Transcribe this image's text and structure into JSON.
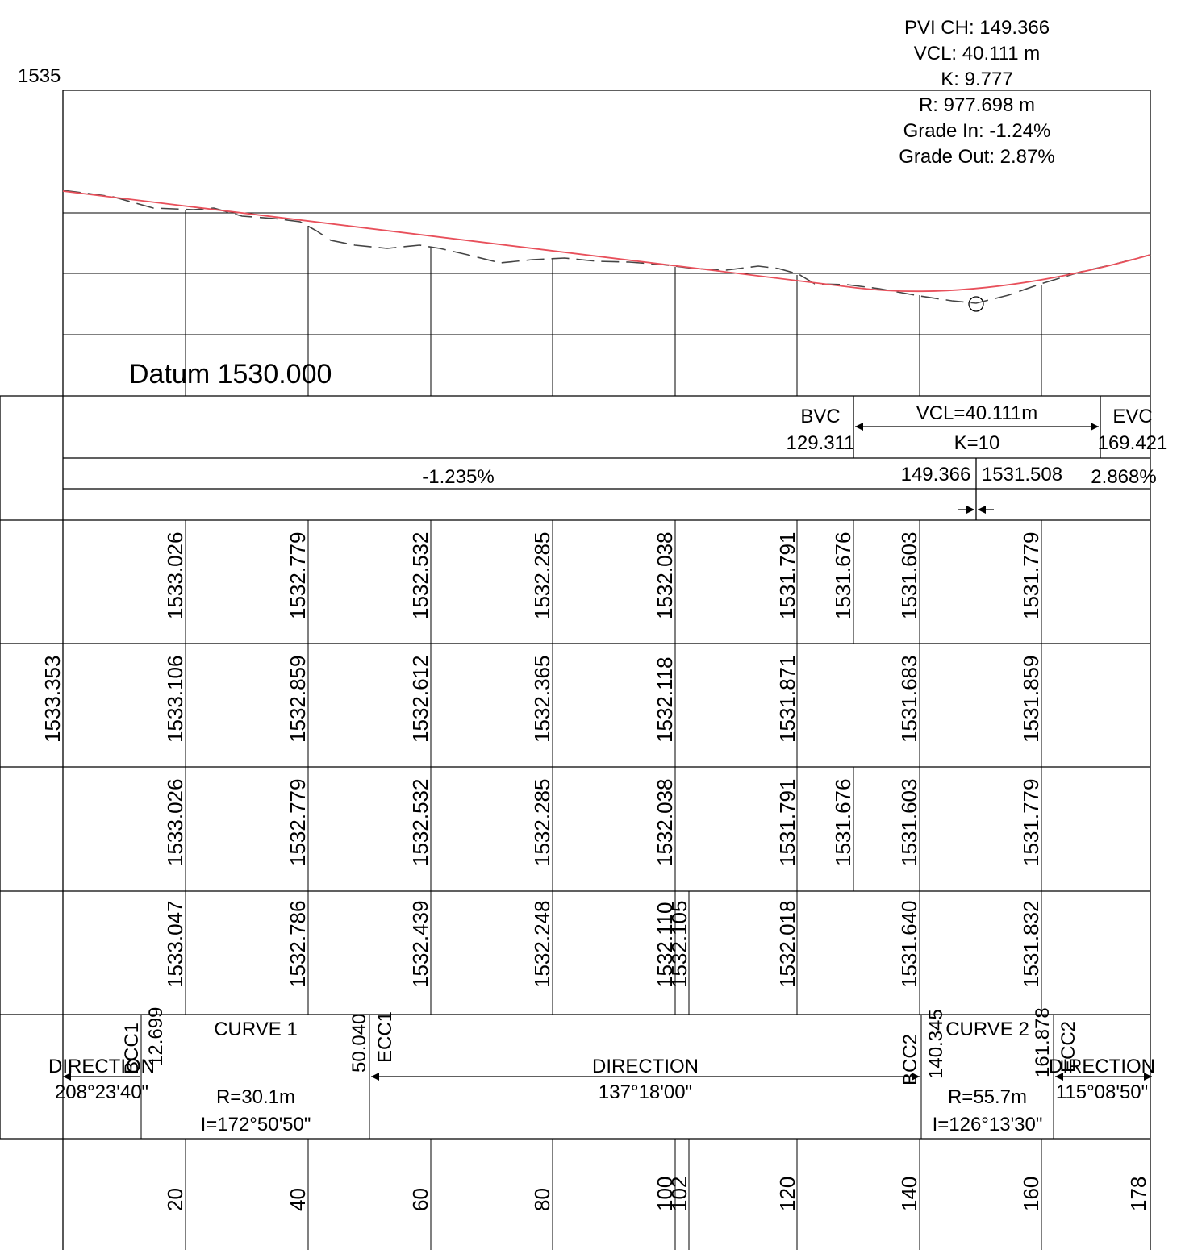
{
  "pvi_info": {
    "lines": [
      "PVI CH: 149.366",
      "VCL: 40.111 m",
      "K: 9.777",
      "R: 977.698 m",
      "Grade In: -1.24%",
      "Grade Out: 2.87%"
    ]
  },
  "profile": {
    "top_level_label": "1535",
    "datum_label": "Datum 1530.000",
    "design_line_color": "#e8505b",
    "ground_line_color": "#444444"
  },
  "vertical_curve": {
    "bvc_label": "BVC",
    "bvc_chainage": "129.311",
    "vcl_label": "VCL=40.111m",
    "k_label": "K=10",
    "evc_label": "EVC",
    "evc_chainage": "169.421"
  },
  "grades": {
    "grade_in": "-1.235%",
    "pvi_chainage": "149.366",
    "pvi_level": "1531.508",
    "grade_out": "2.868%"
  },
  "rows": {
    "design_levels": [
      "1533.026",
      "1532.779",
      "1532.532",
      "1532.285",
      "1532.038",
      "1531.791",
      "1531.676",
      "1531.603",
      "1531.779"
    ],
    "row2_start": "1533.353",
    "row2_values": [
      "1533.106",
      "1532.859",
      "1532.612",
      "1532.365",
      "1532.118",
      "1531.871",
      "1531.683",
      "1531.859"
    ],
    "row3_values": [
      "1533.026",
      "1532.779",
      "1532.532",
      "1532.285",
      "1532.038",
      "1531.791",
      "1531.676",
      "1531.603",
      "1531.779"
    ],
    "ground_levels": [
      "1533.047",
      "1532.786",
      "1532.439",
      "1532.248",
      "1532.110",
      "1532.105",
      "1532.018",
      "1531.640",
      "1531.832"
    ]
  },
  "horizontal": {
    "dir1_label": "DIRECTION",
    "dir1_bearing": "208°23'40\"",
    "bcc1_label": "BCC1",
    "bcc1_chainage": "12.699",
    "curve1_label": "CURVE 1",
    "curve1_radius": "R=30.1m",
    "curve1_angle": "I=172°50'50\"",
    "ecc1_chainage": "50.040",
    "ecc1_label": "ECC1",
    "dir2_label": "DIRECTION",
    "dir2_bearing": "137°18'00\"",
    "bcc2_label": "BCC2",
    "bcc2_chainage": "140.345",
    "curve2_label": "CURVE 2",
    "curve2_radius": "R=55.7m",
    "curve2_angle": "I=126°13'30\"",
    "ecc2_chainage": "161.878",
    "ecc2_label": "ECC2",
    "dir3_label": "DIRECTION",
    "dir3_bearing": "115°08'50\""
  },
  "chainages": [
    "20",
    "40",
    "60",
    "80",
    "100",
    "102",
    "120",
    "140",
    "160",
    "178"
  ]
}
